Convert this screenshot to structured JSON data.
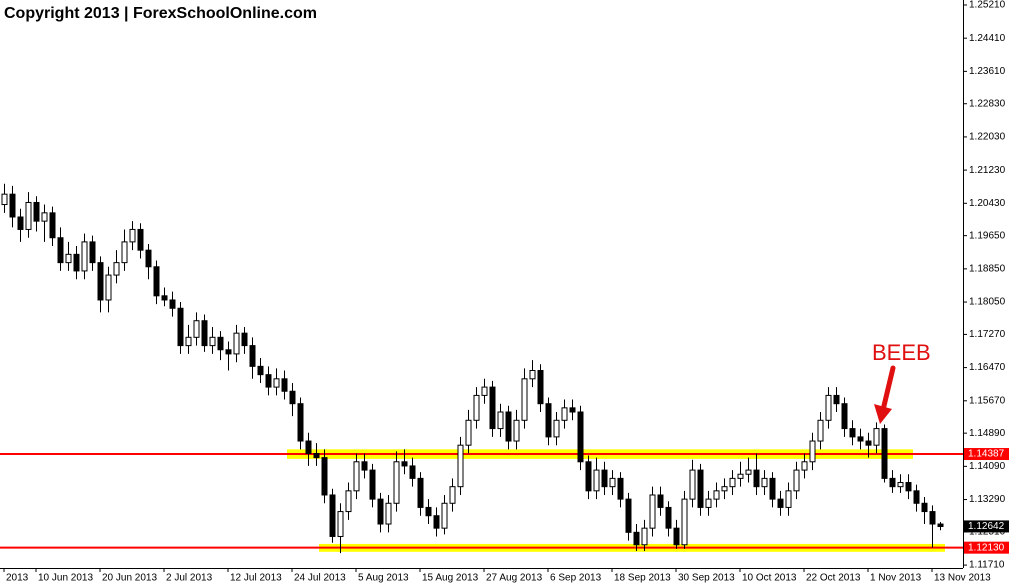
{
  "chart_data": {
    "type": "candlestick",
    "title": "Copyright 2013 | ForexSchoolOnline.com",
    "annotation": "BEEB",
    "up_color": "#ffffff",
    "down_color": "#000000",
    "line_color": "#ff0000",
    "zone_color": "#ffff00",
    "ylim": [
      1.1164,
      1.2533
    ],
    "yticks": [
      {
        "value": 1.2521,
        "label": "1.25210"
      },
      {
        "value": 1.2441,
        "label": "1.24410"
      },
      {
        "value": 1.2361,
        "label": "1.23610"
      },
      {
        "value": 1.2283,
        "label": "1.22830"
      },
      {
        "value": 1.2203,
        "label": "1.22030"
      },
      {
        "value": 1.2123,
        "label": "1.21230"
      },
      {
        "value": 1.2043,
        "label": "1.20430"
      },
      {
        "value": 1.1965,
        "label": "1.19650"
      },
      {
        "value": 1.1885,
        "label": "1.18850"
      },
      {
        "value": 1.1805,
        "label": "1.18050"
      },
      {
        "value": 1.1727,
        "label": "1.17270"
      },
      {
        "value": 1.1647,
        "label": "1.16470"
      },
      {
        "value": 1.1567,
        "label": "1.15670"
      },
      {
        "value": 1.1489,
        "label": "1.14890"
      },
      {
        "value": 1.1409,
        "label": "1.14090"
      },
      {
        "value": 1.1329,
        "label": "1.13290"
      },
      {
        "value": 1.1251,
        "label": "1.12510"
      },
      {
        "value": 1.1171,
        "label": "1.11710"
      }
    ],
    "levels": [
      {
        "value": 1.14387
      },
      {
        "value": 1.1213,
        "label": "1.12130"
      }
    ],
    "bid": 1.12642,
    "zones": [
      {
        "from": 36,
        "to": 113,
        "low": 1.1427,
        "high": 1.145
      },
      {
        "from": 40,
        "to": 117,
        "low": 1.1203,
        "high": 1.1222
      }
    ],
    "categories": [
      "2013",
      null,
      null,
      null,
      "10 Jun 2013",
      null,
      null,
      null,
      null,
      null,
      null,
      null,
      "20 Jun 2013",
      null,
      null,
      null,
      null,
      null,
      null,
      null,
      "2 Jul 2013",
      null,
      null,
      null,
      null,
      null,
      null,
      null,
      "12 Jul 2013",
      null,
      null,
      null,
      null,
      null,
      null,
      null,
      "24 Jul 2013",
      null,
      null,
      null,
      null,
      null,
      null,
      null,
      "5 Aug 2013",
      null,
      null,
      null,
      null,
      null,
      null,
      null,
      "15 Aug 2013",
      null,
      null,
      null,
      null,
      null,
      null,
      null,
      "27 Aug 2013",
      null,
      null,
      null,
      null,
      null,
      null,
      null,
      "6 Sep 2013",
      null,
      null,
      null,
      null,
      null,
      null,
      null,
      "18 Sep 2013",
      null,
      null,
      null,
      null,
      null,
      null,
      null,
      "30 Sep 2013",
      null,
      null,
      null,
      null,
      null,
      null,
      null,
      "10 Oct 2013",
      null,
      null,
      null,
      null,
      null,
      null,
      null,
      "22 Oct 2013",
      null,
      null,
      null,
      null,
      null,
      null,
      null,
      "1 Nov 2013",
      null,
      null,
      null,
      null,
      null,
      null,
      null,
      "13 Nov 2013",
      null
    ],
    "candles": [
      [
        1.204,
        1.209,
        1.202,
        1.2065
      ],
      [
        1.2065,
        1.2085,
        1.1985,
        1.201
      ],
      [
        1.201,
        1.203,
        1.195,
        1.198
      ],
      [
        1.198,
        1.207,
        1.196,
        1.2045
      ],
      [
        1.2045,
        1.206,
        1.1975,
        1.2
      ],
      [
        1.2,
        1.204,
        1.195,
        1.202
      ],
      [
        1.202,
        1.2035,
        1.194,
        1.196
      ],
      [
        1.196,
        1.1985,
        1.188,
        1.19
      ],
      [
        1.19,
        1.195,
        1.188,
        1.192
      ],
      [
        1.192,
        1.194,
        1.186,
        1.188
      ],
      [
        1.188,
        1.197,
        1.186,
        1.195
      ],
      [
        1.195,
        1.1965,
        1.188,
        1.19
      ],
      [
        1.19,
        1.1915,
        1.178,
        1.181
      ],
      [
        1.181,
        1.189,
        1.178,
        1.187
      ],
      [
        1.187,
        1.193,
        1.185,
        1.19
      ],
      [
        1.19,
        1.198,
        1.188,
        1.195
      ],
      [
        1.195,
        1.2,
        1.193,
        1.198
      ],
      [
        1.198,
        1.1995,
        1.191,
        1.193
      ],
      [
        1.193,
        1.1945,
        1.186,
        1.189
      ],
      [
        1.189,
        1.1905,
        1.18,
        1.182
      ],
      [
        1.182,
        1.184,
        1.1795,
        1.181
      ],
      [
        1.181,
        1.183,
        1.177,
        1.179
      ],
      [
        1.179,
        1.1805,
        1.168,
        1.17
      ],
      [
        1.17,
        1.175,
        1.168,
        1.172
      ],
      [
        1.172,
        1.178,
        1.17,
        1.176
      ],
      [
        1.176,
        1.1775,
        1.1685,
        1.17
      ],
      [
        1.17,
        1.1745,
        1.168,
        1.172
      ],
      [
        1.172,
        1.1735,
        1.1665,
        1.169
      ],
      [
        1.169,
        1.171,
        1.164,
        1.168
      ],
      [
        1.168,
        1.175,
        1.166,
        1.173
      ],
      [
        1.173,
        1.1745,
        1.168,
        1.17
      ],
      [
        1.17,
        1.172,
        1.162,
        1.165
      ],
      [
        1.165,
        1.167,
        1.161,
        1.163
      ],
      [
        1.163,
        1.165,
        1.158,
        1.16
      ],
      [
        1.16,
        1.1645,
        1.158,
        1.162
      ],
      [
        1.162,
        1.164,
        1.157,
        1.159
      ],
      [
        1.159,
        1.161,
        1.153,
        1.156
      ],
      [
        1.156,
        1.1575,
        1.145,
        1.147
      ],
      [
        1.147,
        1.149,
        1.141,
        1.144
      ],
      [
        1.144,
        1.1465,
        1.141,
        1.143
      ],
      [
        1.143,
        1.145,
        1.132,
        1.134
      ],
      [
        1.134,
        1.1355,
        1.1225,
        1.124
      ],
      [
        1.124,
        1.132,
        1.12,
        1.13
      ],
      [
        1.13,
        1.137,
        1.128,
        1.135
      ],
      [
        1.135,
        1.144,
        1.133,
        1.142
      ],
      [
        1.142,
        1.144,
        1.138,
        1.14
      ],
      [
        1.14,
        1.1415,
        1.131,
        1.133
      ],
      [
        1.133,
        1.1345,
        1.125,
        1.127
      ],
      [
        1.127,
        1.134,
        1.125,
        1.132
      ],
      [
        1.132,
        1.1445,
        1.13,
        1.142
      ],
      [
        1.142,
        1.145,
        1.139,
        1.141
      ],
      [
        1.141,
        1.143,
        1.136,
        1.138
      ],
      [
        1.138,
        1.1395,
        1.129,
        1.131
      ],
      [
        1.131,
        1.133,
        1.127,
        1.129
      ],
      [
        1.129,
        1.131,
        1.124,
        1.126
      ],
      [
        1.126,
        1.134,
        1.1245,
        1.132
      ],
      [
        1.132,
        1.138,
        1.13,
        1.136
      ],
      [
        1.136,
        1.148,
        1.134,
        1.146
      ],
      [
        1.146,
        1.1545,
        1.144,
        1.152
      ],
      [
        1.152,
        1.16,
        1.15,
        1.158
      ],
      [
        1.158,
        1.162,
        1.156,
        1.16
      ],
      [
        1.16,
        1.1615,
        1.148,
        1.15
      ],
      [
        1.15,
        1.156,
        1.148,
        1.154
      ],
      [
        1.154,
        1.1555,
        1.145,
        1.147
      ],
      [
        1.147,
        1.1545,
        1.145,
        1.152
      ],
      [
        1.152,
        1.1645,
        1.15,
        1.162
      ],
      [
        1.162,
        1.1665,
        1.16,
        1.164
      ],
      [
        1.164,
        1.1655,
        1.154,
        1.156
      ],
      [
        1.156,
        1.1575,
        1.146,
        1.148
      ],
      [
        1.148,
        1.154,
        1.146,
        1.152
      ],
      [
        1.152,
        1.157,
        1.15,
        1.155
      ],
      [
        1.155,
        1.157,
        1.152,
        1.154
      ],
      [
        1.154,
        1.1555,
        1.14,
        1.142
      ],
      [
        1.142,
        1.1435,
        1.133,
        1.135
      ],
      [
        1.135,
        1.143,
        1.133,
        1.14
      ],
      [
        1.14,
        1.142,
        1.134,
        1.136
      ],
      [
        1.136,
        1.14,
        1.134,
        1.138
      ],
      [
        1.138,
        1.1395,
        1.131,
        1.133
      ],
      [
        1.133,
        1.1345,
        1.123,
        1.125
      ],
      [
        1.125,
        1.127,
        1.1205,
        1.122
      ],
      [
        1.122,
        1.128,
        1.1205,
        1.126
      ],
      [
        1.126,
        1.136,
        1.124,
        1.134
      ],
      [
        1.134,
        1.136,
        1.129,
        1.131
      ],
      [
        1.131,
        1.1325,
        1.124,
        1.126
      ],
      [
        1.126,
        1.128,
        1.121,
        1.122
      ],
      [
        1.122,
        1.135,
        1.121,
        1.133
      ],
      [
        1.133,
        1.1425,
        1.131,
        1.14
      ],
      [
        1.14,
        1.1415,
        1.129,
        1.131
      ],
      [
        1.131,
        1.135,
        1.129,
        1.133
      ],
      [
        1.133,
        1.137,
        1.131,
        1.135
      ],
      [
        1.135,
        1.138,
        1.133,
        1.136
      ],
      [
        1.136,
        1.14,
        1.134,
        1.138
      ],
      [
        1.138,
        1.142,
        1.136,
        1.139
      ],
      [
        1.139,
        1.143,
        1.137,
        1.14
      ],
      [
        1.14,
        1.144,
        1.134,
        1.136
      ],
      [
        1.136,
        1.14,
        1.134,
        1.138
      ],
      [
        1.138,
        1.1395,
        1.131,
        1.133
      ],
      [
        1.133,
        1.135,
        1.129,
        1.131
      ],
      [
        1.131,
        1.137,
        1.129,
        1.135
      ],
      [
        1.135,
        1.142,
        1.133,
        1.14
      ],
      [
        1.14,
        1.144,
        1.138,
        1.142
      ],
      [
        1.142,
        1.149,
        1.14,
        1.147
      ],
      [
        1.147,
        1.154,
        1.145,
        1.152
      ],
      [
        1.152,
        1.16,
        1.15,
        1.158
      ],
      [
        1.158,
        1.16,
        1.154,
        1.156
      ],
      [
        1.156,
        1.1575,
        1.148,
        1.15
      ],
      [
        1.15,
        1.152,
        1.146,
        1.148
      ],
      [
        1.148,
        1.15,
        1.145,
        1.147
      ],
      [
        1.147,
        1.149,
        1.143,
        1.146
      ],
      [
        1.146,
        1.1515,
        1.144,
        1.15
      ],
      [
        1.15,
        1.151,
        1.137,
        1.138
      ],
      [
        1.138,
        1.14,
        1.1345,
        1.136
      ],
      [
        1.136,
        1.139,
        1.1345,
        1.137
      ],
      [
        1.137,
        1.139,
        1.133,
        1.135
      ],
      [
        1.135,
        1.1365,
        1.13,
        1.132
      ],
      [
        1.132,
        1.1335,
        1.127,
        1.13
      ],
      [
        1.13,
        1.1315,
        1.1213,
        1.127
      ],
      [
        1.127,
        1.1275,
        1.1255,
        1.1264
      ]
    ]
  }
}
